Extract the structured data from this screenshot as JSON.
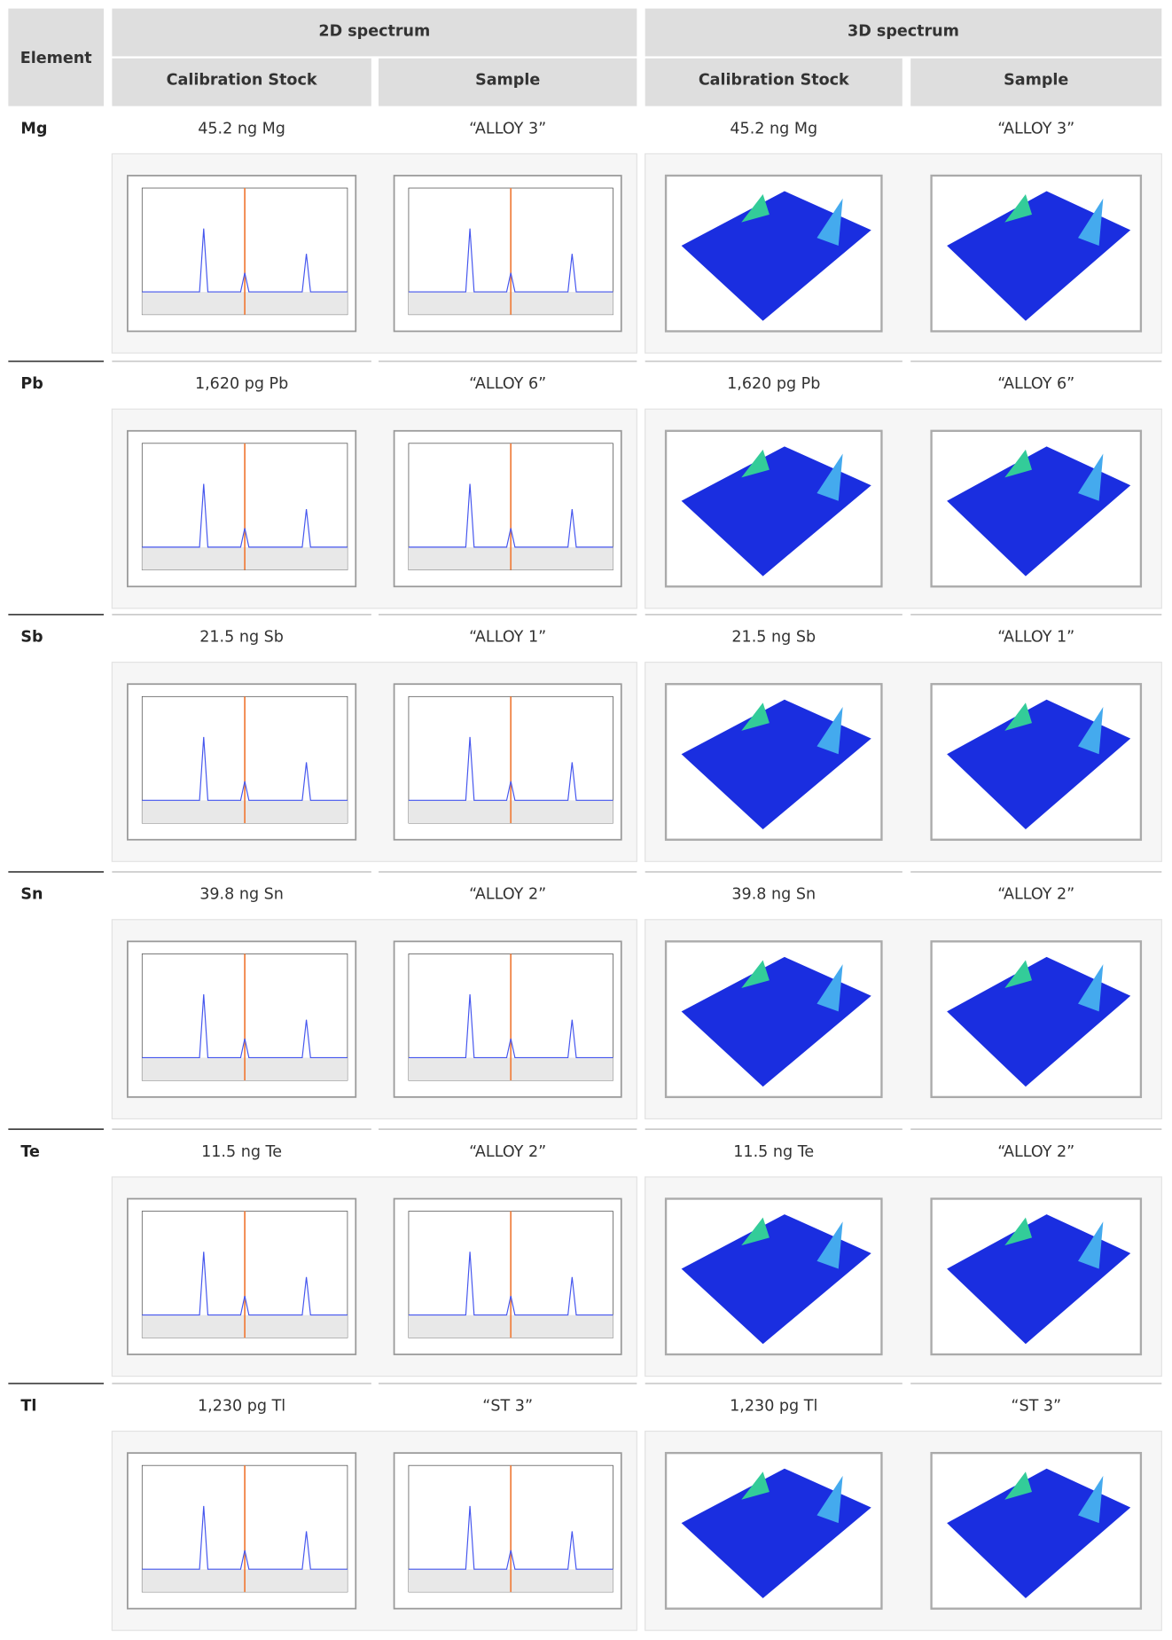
{
  "header": {
    "element": "Element",
    "groups": [
      "2D spectrum",
      "3D spectrum"
    ],
    "subheaders": [
      "Calibration Stock",
      "Sample",
      "Calibration Stock",
      "Sample"
    ]
  },
  "rows": [
    {
      "element": "Mg",
      "cells": [
        "45.2 ng Mg",
        "“ALLOY 3”",
        "45.2 ng Mg",
        "“ALLOY 3”"
      ]
    },
    {
      "element": "Pb",
      "cells": [
        "1,620 pg Pb",
        "“ALLOY 6”",
        "1,620 pg Pb",
        "“ALLOY 6”"
      ]
    },
    {
      "element": "Sb",
      "cells": [
        "21.5 ng Sb",
        "“ALLOY 1”",
        "21.5 ng Sb",
        "“ALLOY 1”"
      ]
    },
    {
      "element": "Sn",
      "cells": [
        "39.8 ng Sn",
        "“ALLOY 2”",
        "39.8 ng Sn",
        "“ALLOY 2”"
      ]
    },
    {
      "element": "Te",
      "cells": [
        "11.5 ng Te",
        "“ALLOY 2”",
        "11.5 ng Te",
        "“ALLOY 2”"
      ]
    },
    {
      "element": "Tl",
      "cells": [
        "1,230 pg Tl",
        "“ST 3”",
        "1,230 pg Tl",
        "“ST 3”"
      ]
    }
  ]
}
